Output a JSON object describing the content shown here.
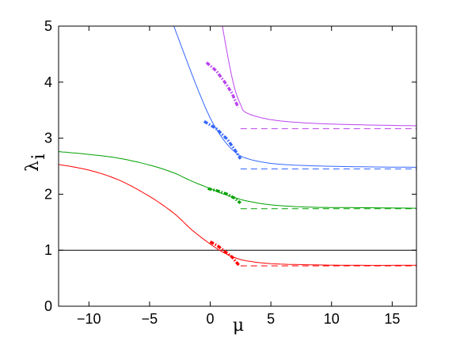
{
  "chart_data": {
    "type": "line",
    "xlabel": "μ",
    "ylabel": "λ",
    "ylabel_subscript": "i",
    "xlim": [
      -12.5,
      17
    ],
    "ylim": [
      0,
      5
    ],
    "xticks": [
      -10,
      -5,
      0,
      5,
      10,
      15
    ],
    "yticks": [
      0,
      1,
      2,
      3,
      4,
      5
    ],
    "xtick_labels": [
      "−10",
      "−5",
      "0",
      "5",
      "10",
      "15"
    ],
    "ytick_labels": [
      "0",
      "1",
      "2",
      "3",
      "4",
      "5"
    ],
    "grid": false,
    "legend": "none",
    "series": [
      {
        "color": "#000000",
        "style": "solid",
        "x": [
          -12.5,
          17
        ],
        "y": [
          1.0,
          1.0
        ]
      },
      {
        "color": "#ff0000",
        "style": "solid",
        "x": [
          -12.5,
          -10,
          -7.5,
          -5,
          -3,
          -1.5,
          0,
          1,
          2,
          3,
          5,
          8,
          12,
          17
        ],
        "y": [
          2.53,
          2.43,
          2.25,
          1.96,
          1.66,
          1.36,
          1.11,
          0.97,
          0.87,
          0.81,
          0.76,
          0.74,
          0.73,
          0.73
        ]
      },
      {
        "color": "#00a000",
        "style": "solid",
        "x": [
          -12.5,
          -10,
          -7.5,
          -5,
          -3,
          -1.5,
          0,
          1,
          2,
          3,
          5,
          8,
          12,
          17
        ],
        "y": [
          2.76,
          2.71,
          2.64,
          2.52,
          2.38,
          2.23,
          2.1,
          2.01,
          1.94,
          1.88,
          1.81,
          1.77,
          1.76,
          1.75
        ]
      },
      {
        "color": "#3366ff",
        "style": "solid",
        "x": [
          -3.0,
          -2.0,
          -1.0,
          0,
          1,
          2,
          3,
          5,
          8,
          12,
          17
        ],
        "y": [
          5.0,
          4.42,
          3.86,
          3.36,
          3.0,
          2.76,
          2.64,
          2.55,
          2.51,
          2.49,
          2.48
        ]
      },
      {
        "color": "#bb44ee",
        "style": "solid",
        "x": [
          1.0,
          1.5,
          2.0,
          2.5,
          3,
          5,
          8,
          12,
          17
        ],
        "y": [
          5.0,
          4.4,
          3.9,
          3.6,
          3.45,
          3.33,
          3.27,
          3.24,
          3.22
        ]
      },
      {
        "color": "#ff0000",
        "style": "dashed",
        "x": [
          2.5,
          17
        ],
        "y": [
          0.72,
          0.72
        ]
      },
      {
        "color": "#00a000",
        "style": "dashed",
        "x": [
          2.5,
          17
        ],
        "y": [
          1.74,
          1.74
        ]
      },
      {
        "color": "#3366ff",
        "style": "dashed",
        "x": [
          2.5,
          17
        ],
        "y": [
          2.45,
          2.45
        ]
      },
      {
        "color": "#bb44ee",
        "style": "dashed",
        "x": [
          2.5,
          17
        ],
        "y": [
          3.17,
          3.17
        ]
      },
      {
        "color": "#ff0000",
        "style": "dashdot-thick",
        "x": [
          0,
          0.6,
          1.2,
          1.8,
          2.4
        ],
        "y": [
          1.15,
          1.08,
          0.98,
          0.88,
          0.72
        ]
      },
      {
        "color": "#00a000",
        "style": "dashdot-thick",
        "x": [
          -0.2,
          0.6,
          1.4,
          2.0,
          2.5
        ],
        "y": [
          2.1,
          2.06,
          2.0,
          1.93,
          1.84
        ]
      },
      {
        "color": "#3366ff",
        "style": "dashdot-thick",
        "x": [
          -0.5,
          0.5,
          1.4,
          2.0,
          2.5
        ],
        "y": [
          3.3,
          3.17,
          2.98,
          2.8,
          2.63
        ]
      },
      {
        "color": "#bb44ee",
        "style": "dashdot-thick",
        "x": [
          -0.3,
          0.5,
          1.2,
          1.8,
          2.3
        ],
        "y": [
          4.35,
          4.2,
          4.0,
          3.8,
          3.55
        ]
      }
    ]
  }
}
